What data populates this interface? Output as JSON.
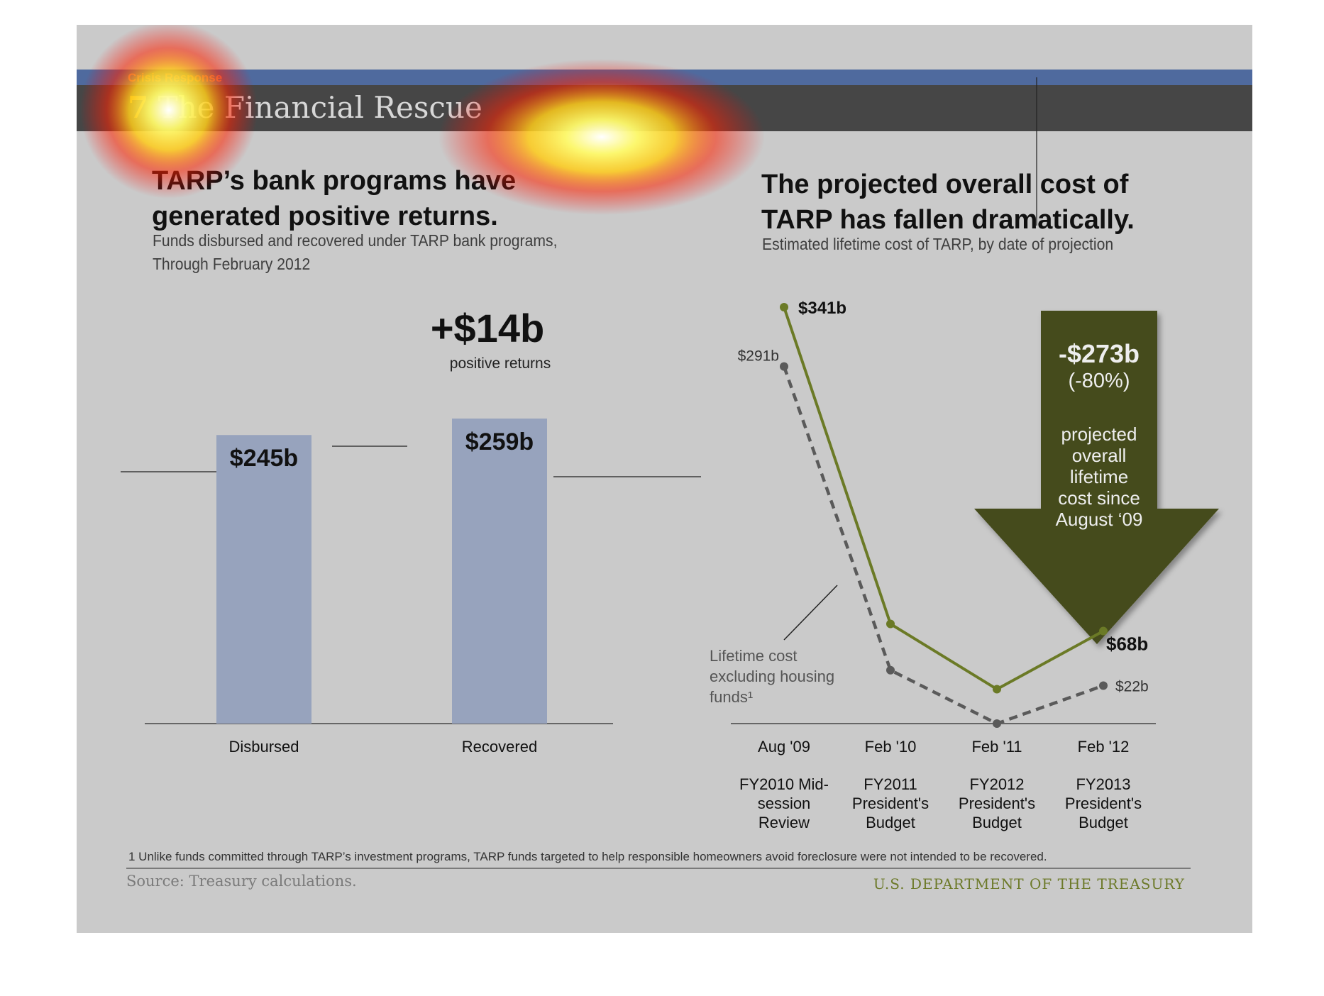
{
  "slide": {
    "section_label": "Crisis Response",
    "title_number": "7",
    "title_text": "The Financial Rescue"
  },
  "left_panel": {
    "heading": "TARP’s bank programs have\ngenerated positive returns.",
    "subheading": "Funds disbursed and recovered under TARP bank programs,\nThrough February 2012"
  },
  "right_panel": {
    "heading": "The projected overall cost of\nTARP has fallen dramatically.",
    "subheading": "Estimated lifetime cost of TARP, by date of projection"
  },
  "chart_data": [
    {
      "type": "bar",
      "categories": [
        "Disbursed",
        "Recovered"
      ],
      "values": [
        245,
        259
      ],
      "data_labels": [
        "$245b",
        "$259b"
      ],
      "ylim": [
        0,
        300
      ],
      "bar_color": "#97a3bd",
      "annotation": {
        "value": "+$14b",
        "text": "positive returns"
      }
    },
    {
      "type": "line",
      "categories": [
        "Aug '09",
        "Feb '10",
        "Feb '11",
        "Feb '12"
      ],
      "category_details": [
        "FY2010 Mid-session Review",
        "FY2011 President's Budget",
        "FY2012 President's Budget",
        "FY2013 President's Budget"
      ],
      "series": [
        {
          "values": [
            341,
            74,
            19,
            68
          ],
          "color": "#6b7a26",
          "style": "solid",
          "end_labels": [
            "$341b",
            "$68b"
          ]
        },
        {
          "name": "Lifetime cost excluding housing funds¹",
          "values": [
            291,
            35,
            -10,
            22
          ],
          "color": "#5a5a5a",
          "style": "dashed",
          "end_labels": [
            "$291b",
            "$22b"
          ]
        }
      ],
      "ylim": [
        -10,
        341
      ],
      "annotation": {
        "value": "-$273b",
        "percent": "(-80%)",
        "text_lines": [
          "projected",
          "overall",
          "lifetime",
          "cost since",
          "August ‘09"
        ],
        "arrow_color": "#454c1c"
      }
    }
  ],
  "footer": {
    "footnote": "1 Unlike funds committed through TARP’s investment programs, TARP funds targeted to help responsible homeowners avoid foreclosure were not intended to be recovered.",
    "source": "Source: Treasury calculations.",
    "agency": "U.S. DEPARTMENT OF THE TREASURY"
  }
}
